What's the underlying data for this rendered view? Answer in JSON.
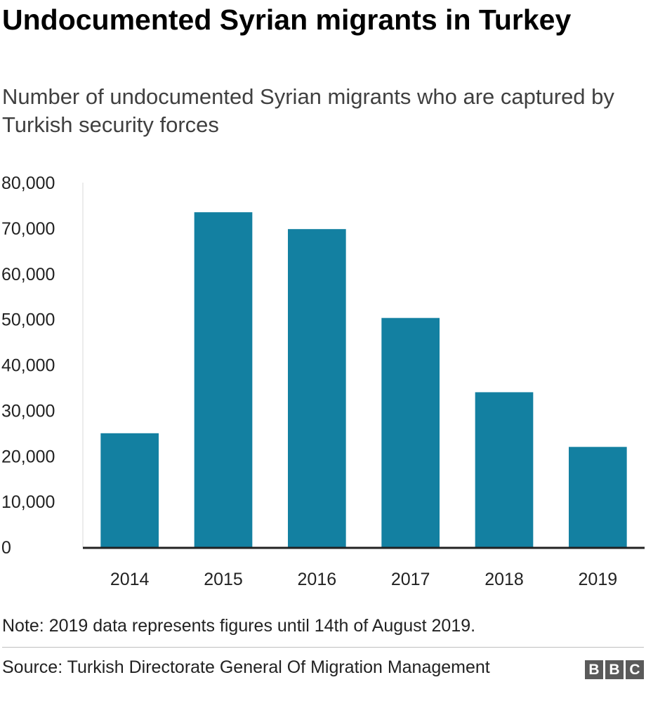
{
  "title": "Undocumented Syrian migrants in Turkey",
  "subtitle": "Number of undocumented Syrian migrants who are captured by Turkish security forces",
  "chart_data": {
    "type": "bar",
    "categories": [
      "2014",
      "2015",
      "2016",
      "2017",
      "2018",
      "2019"
    ],
    "values": [
      25000,
      73500,
      69800,
      50300,
      34000,
      22000
    ],
    "ylim": [
      0,
      80000
    ],
    "yticks": [
      0,
      10000,
      20000,
      30000,
      40000,
      50000,
      60000,
      70000,
      80000
    ],
    "ytick_labels": [
      "0",
      "10,000",
      "20,000",
      "30,000",
      "40,000",
      "50,000",
      "60,000",
      "70,000",
      "80,000"
    ],
    "bar_color": "#1380a1",
    "grid": false,
    "legend": "none"
  },
  "note": "Note: 2019 data represents figures until 14th of August 2019.",
  "source": "Source: Turkish Directorate General Of Migration Management",
  "logo": {
    "letters": [
      "B",
      "B",
      "C"
    ]
  }
}
